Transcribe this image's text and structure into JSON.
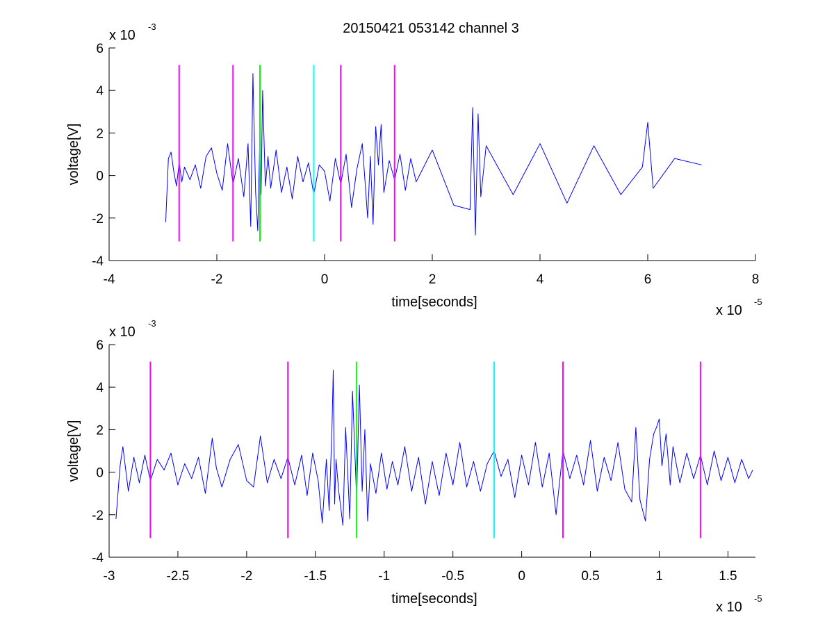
{
  "title": "20150421 053142 channel 3",
  "colors": {
    "signal": "#0000ff",
    "marker_magenta": "#ff00ff",
    "marker_green": "#00ff00",
    "marker_cyan": "#00ffff",
    "axes": "#000000",
    "background": "#ffffff"
  },
  "chart_data": [
    {
      "type": "line",
      "title": "20150421 053142 channel 3",
      "xlabel": "time[seconds]",
      "ylabel": "voltage[V]",
      "x_exponent_label": {
        "base": "x 10",
        "exp": "-5"
      },
      "y_exponent_label": {
        "base": "x 10",
        "exp": "-3"
      },
      "x_scale": 1e-05,
      "y_scale": 0.001,
      "xlim": [
        -4,
        8
      ],
      "ylim": [
        -4,
        6
      ],
      "xticks": [
        -4,
        -2,
        0,
        2,
        4,
        6,
        8
      ],
      "xtick_labels": [
        "-4",
        "-2",
        "0",
        "2",
        "4",
        "6",
        "8"
      ],
      "yticks": [
        -4,
        -2,
        0,
        2,
        4,
        6
      ],
      "ytick_labels": [
        "-4",
        "-2",
        "0",
        "2",
        "4",
        "6"
      ],
      "grid": false,
      "series": [
        {
          "color": "#0000ff",
          "x": [
            -2.95,
            -2.9,
            -2.85,
            -2.8,
            -2.75,
            -2.7,
            -2.65,
            -2.6,
            -2.5,
            -2.4,
            -2.3,
            -2.2,
            -2.1,
            -2.0,
            -1.9,
            -1.8,
            -1.7,
            -1.6,
            -1.5,
            -1.42,
            -1.37,
            -1.33,
            -1.28,
            -1.24,
            -1.2,
            -1.18,
            -1.15,
            -1.1,
            -1.05,
            -1.0,
            -0.9,
            -0.8,
            -0.7,
            -0.6,
            -0.5,
            -0.4,
            -0.3,
            -0.2,
            -0.1,
            0.0,
            0.1,
            0.2,
            0.3,
            0.4,
            0.5,
            0.6,
            0.7,
            0.8,
            0.85,
            0.9,
            0.95,
            1.0,
            1.05,
            1.1,
            1.2,
            1.3,
            1.4,
            1.5,
            1.6,
            1.7,
            2.0,
            2.4,
            2.7,
            2.75,
            2.8,
            2.85,
            2.9,
            3.0,
            3.5,
            4.0,
            4.5,
            5.0,
            5.5,
            5.9,
            6.0,
            6.1,
            6.5,
            7.0
          ],
          "y": [
            -2.2,
            0.8,
            1.1,
            0.2,
            -0.5,
            0.6,
            -0.3,
            0.4,
            -0.2,
            0.5,
            -0.6,
            0.9,
            1.3,
            0.1,
            -0.7,
            1.5,
            -0.4,
            0.8,
            -1.0,
            1.5,
            -2.4,
            4.8,
            -0.8,
            -2.6,
            2.0,
            -0.9,
            4.0,
            -0.5,
            0.9,
            -0.6,
            1.2,
            -0.8,
            0.4,
            -1.1,
            0.9,
            -0.3,
            0.6,
            -0.9,
            0.5,
            0.2,
            -1.2,
            0.8,
            -0.4,
            1.0,
            -1.5,
            0.3,
            1.5,
            -2.0,
            0.9,
            -2.3,
            2.3,
            0.5,
            2.4,
            -0.8,
            0.7,
            -0.2,
            1.0,
            -0.7,
            0.8,
            -0.3,
            1.2,
            -1.4,
            -1.6,
            3.2,
            -2.8,
            2.9,
            -1.0,
            1.4,
            -0.9,
            1.5,
            -1.3,
            1.4,
            -0.9,
            0.4,
            2.5,
            -0.6,
            0.8,
            0.5
          ]
        }
      ],
      "markers": [
        {
          "x": -2.7,
          "y_range": [
            -3.1,
            5.2
          ],
          "color": "#ff00ff"
        },
        {
          "x": -1.7,
          "y_range": [
            -3.1,
            5.2
          ],
          "color": "#ff00ff"
        },
        {
          "x": -1.2,
          "y_range": [
            -3.1,
            5.2
          ],
          "color": "#00ff00"
        },
        {
          "x": -0.2,
          "y_range": [
            -3.1,
            5.2
          ],
          "color": "#00ffff"
        },
        {
          "x": 0.3,
          "y_range": [
            -3.1,
            5.2
          ],
          "color": "#ff00ff"
        },
        {
          "x": 1.3,
          "y_range": [
            -3.1,
            5.2
          ],
          "color": "#ff00ff"
        }
      ]
    },
    {
      "type": "line",
      "title": "",
      "xlabel": "time[seconds]",
      "ylabel": "voltage[V]",
      "x_exponent_label": {
        "base": "x 10",
        "exp": "-5"
      },
      "y_exponent_label": {
        "base": "x 10",
        "exp": "-3"
      },
      "x_scale": 1e-05,
      "y_scale": 0.001,
      "xlim": [
        -3.0,
        1.7
      ],
      "ylim": [
        -4,
        6
      ],
      "xticks": [
        -3,
        -2.5,
        -2,
        -1.5,
        -1,
        -0.5,
        0,
        0.5,
        1,
        1.5
      ],
      "xtick_labels": [
        "-3",
        "-2.5",
        "-2",
        "-1.5",
        "-1",
        "-0.5",
        "0",
        "0.5",
        "1",
        "1.5"
      ],
      "yticks": [
        -4,
        -2,
        0,
        2,
        4,
        6
      ],
      "ytick_labels": [
        "-4",
        "-2",
        "0",
        "2",
        "4",
        "6"
      ],
      "grid": false,
      "series": [
        {
          "color": "#0000ff",
          "x": [
            -2.95,
            -2.92,
            -2.9,
            -2.86,
            -2.82,
            -2.78,
            -2.74,
            -2.7,
            -2.65,
            -2.6,
            -2.55,
            -2.5,
            -2.45,
            -2.4,
            -2.35,
            -2.3,
            -2.25,
            -2.22,
            -2.18,
            -2.12,
            -2.06,
            -2.0,
            -1.95,
            -1.9,
            -1.85,
            -1.8,
            -1.75,
            -1.7,
            -1.65,
            -1.6,
            -1.56,
            -1.52,
            -1.48,
            -1.45,
            -1.42,
            -1.4,
            -1.38,
            -1.37,
            -1.36,
            -1.35,
            -1.33,
            -1.3,
            -1.28,
            -1.25,
            -1.23,
            -1.2,
            -1.18,
            -1.16,
            -1.14,
            -1.12,
            -1.1,
            -1.06,
            -1.02,
            -0.98,
            -0.94,
            -0.9,
            -0.85,
            -0.8,
            -0.75,
            -0.7,
            -0.65,
            -0.6,
            -0.55,
            -0.5,
            -0.45,
            -0.4,
            -0.35,
            -0.3,
            -0.25,
            -0.2,
            -0.15,
            -0.1,
            -0.05,
            0.0,
            0.05,
            0.1,
            0.15,
            0.2,
            0.25,
            0.3,
            0.35,
            0.4,
            0.45,
            0.5,
            0.55,
            0.6,
            0.65,
            0.7,
            0.75,
            0.8,
            0.83,
            0.86,
            0.9,
            0.93,
            0.96,
            0.98,
            1.0,
            1.02,
            1.05,
            1.08,
            1.1,
            1.15,
            1.2,
            1.25,
            1.3,
            1.35,
            1.4,
            1.45,
            1.5,
            1.55,
            1.6,
            1.65,
            1.68
          ],
          "y": [
            -2.2,
            0.3,
            1.2,
            -0.9,
            0.7,
            -0.5,
            0.8,
            -0.4,
            0.6,
            0.1,
            0.9,
            -0.6,
            0.4,
            -0.3,
            0.7,
            -1.0,
            1.6,
            0.2,
            -0.7,
            0.6,
            1.3,
            -0.4,
            -0.7,
            1.7,
            -0.5,
            0.6,
            -0.3,
            0.7,
            -0.6,
            0.8,
            -1.1,
            0.9,
            -0.4,
            -2.4,
            0.6,
            -1.8,
            2.0,
            4.8,
            -1.5,
            0.6,
            -0.9,
            -2.5,
            2.1,
            -2.2,
            3.8,
            -1.3,
            4.1,
            -0.9,
            2.0,
            -2.3,
            0.4,
            -1.0,
            0.9,
            -0.8,
            0.5,
            -0.6,
            1.2,
            -0.9,
            0.7,
            -1.5,
            0.5,
            -1.1,
            0.9,
            -0.6,
            1.4,
            -0.7,
            0.5,
            -0.9,
            0.4,
            1.0,
            -0.2,
            0.6,
            -1.2,
            0.8,
            -0.6,
            1.4,
            -0.7,
            0.9,
            -2.0,
            1.0,
            -0.3,
            0.8,
            -0.6,
            1.5,
            -0.9,
            0.7,
            -0.4,
            1.4,
            -0.8,
            -1.4,
            2.1,
            -1.3,
            -2.3,
            0.6,
            1.8,
            2.1,
            2.5,
            0.3,
            1.8,
            -0.6,
            1.2,
            -0.5,
            0.9,
            -0.3,
            0.8,
            -0.6,
            1.0,
            -0.4,
            0.7,
            -0.5,
            0.6,
            -0.3,
            0.1
          ]
        }
      ],
      "markers": [
        {
          "x": -2.7,
          "y_range": [
            -3.1,
            5.2
          ],
          "color": "#ff00ff"
        },
        {
          "x": -1.7,
          "y_range": [
            -3.1,
            5.2
          ],
          "color": "#ff00ff"
        },
        {
          "x": -1.2,
          "y_range": [
            -3.1,
            5.2
          ],
          "color": "#00ff00"
        },
        {
          "x": -0.2,
          "y_range": [
            -3.1,
            5.2
          ],
          "color": "#00ffff"
        },
        {
          "x": 0.3,
          "y_range": [
            -3.1,
            5.2
          ],
          "color": "#ff00ff"
        },
        {
          "x": 1.3,
          "y_range": [
            -3.1,
            5.2
          ],
          "color": "#ff00ff"
        }
      ]
    }
  ]
}
